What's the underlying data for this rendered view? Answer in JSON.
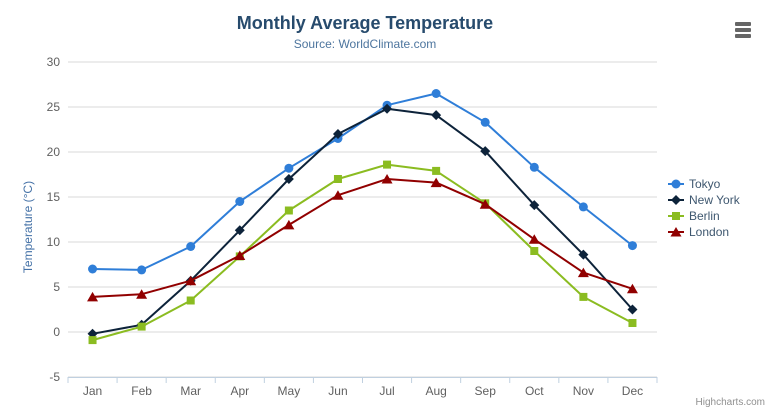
{
  "chart_data": {
    "type": "line",
    "title": "Monthly Average Temperature",
    "subtitle": "Source: WorldClimate.com",
    "categories": [
      "Jan",
      "Feb",
      "Mar",
      "Apr",
      "May",
      "Jun",
      "Jul",
      "Aug",
      "Sep",
      "Oct",
      "Nov",
      "Dec"
    ],
    "xlabel": "",
    "ylabel": "Temperature (°C)",
    "yaxis": {
      "title": "Temperature (°C)",
      "min": -5,
      "max": 30,
      "tick_interval": 5,
      "ticks": [
        -5,
        0,
        5,
        10,
        15,
        20,
        25,
        30
      ]
    },
    "grid": true,
    "legend_position": "right",
    "series": [
      {
        "name": "Tokyo",
        "color": "#2f7ed8",
        "marker": "circle",
        "values": [
          7.0,
          6.9,
          9.5,
          14.5,
          18.2,
          21.5,
          25.2,
          26.5,
          23.3,
          18.3,
          13.9,
          9.6
        ]
      },
      {
        "name": "New York",
        "color": "#0d233a",
        "marker": "diamond",
        "values": [
          -0.2,
          0.8,
          5.7,
          11.3,
          17.0,
          22.0,
          24.8,
          24.1,
          20.1,
          14.1,
          8.6,
          2.5
        ]
      },
      {
        "name": "Berlin",
        "color": "#8bbc21",
        "marker": "square",
        "values": [
          -0.9,
          0.6,
          3.5,
          8.4,
          13.5,
          17.0,
          18.6,
          17.9,
          14.3,
          9.0,
          3.9,
          1.0
        ]
      },
      {
        "name": "London",
        "color": "#910000",
        "marker": "triangle",
        "values": [
          3.9,
          4.2,
          5.7,
          8.5,
          11.9,
          15.2,
          17.0,
          16.6,
          14.2,
          10.3,
          6.6,
          4.8
        ]
      }
    ],
    "colors": {
      "grid_line": "#d8d8d8",
      "axis_line": "#c0d0e0",
      "tick_label": "#606060",
      "title": "#274b6d",
      "subtitle": "#4d759e",
      "yaxis_title": "#4572a7",
      "legend_text": "#3e576f"
    }
  },
  "export": {
    "icon": "hamburger-menu-icon"
  },
  "credits": {
    "label": "Highcharts.com"
  }
}
